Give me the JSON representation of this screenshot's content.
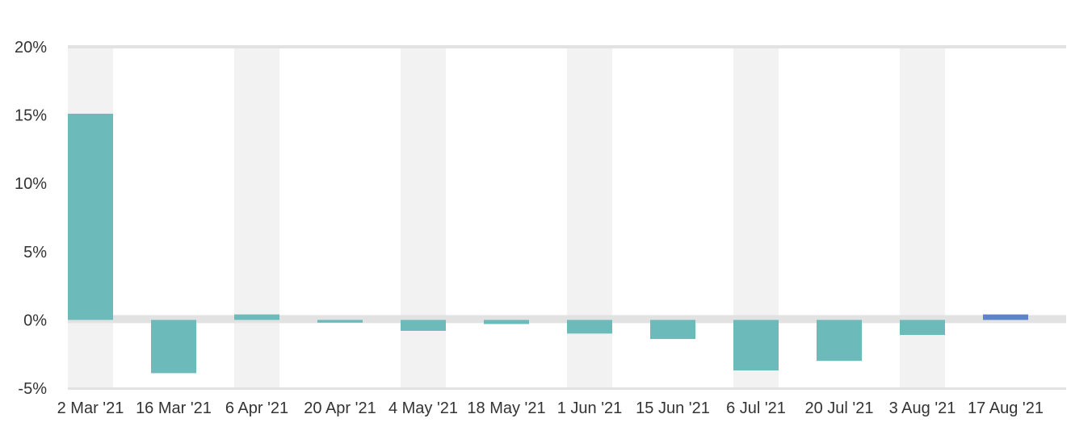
{
  "chart_data": {
    "type": "bar",
    "title": "",
    "xlabel": "",
    "ylabel": "",
    "categories": [
      "2 Mar '21",
      "16 Mar '21",
      "6 Apr '21",
      "20 Apr '21",
      "4 May '21",
      "18 May '21",
      "1 Jun '21",
      "15 Jun '21",
      "6 Jul '21",
      "20 Jul '21",
      "3 Aug '21",
      "17 Aug '21"
    ],
    "values": [
      15.1,
      -3.9,
      0.4,
      -0.2,
      -0.8,
      -0.3,
      -1.0,
      -1.4,
      -3.7,
      -3.0,
      -1.1,
      0.4
    ],
    "ylim": [
      -5,
      20
    ],
    "yticks": [
      20,
      15,
      10,
      5,
      0,
      -5
    ],
    "ytick_labels": [
      "20%",
      "15%",
      "10%",
      "5%",
      "0%",
      "-5%"
    ],
    "grid": false,
    "legend": "none",
    "colors": {
      "bar": "#6dbabb",
      "bar_highlight": "#5b85c8",
      "band": "#f2f2f2",
      "axis_line": "#e2e2e2"
    },
    "highlight_index": 11
  }
}
